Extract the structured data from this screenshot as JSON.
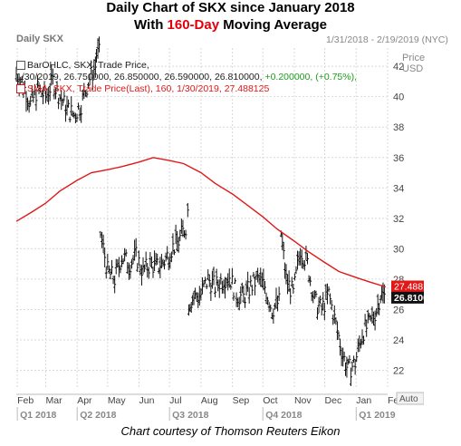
{
  "header": {
    "title_line1": "Daily Chart of SKX since January 2018",
    "title_line2_prefix": "With ",
    "title_line2_highlight": "160-Day",
    "title_line2_suffix": " Moving Average"
  },
  "panel": {
    "name": "Daily SKX",
    "date_range": "1/31/2018 - 2/19/2019 (NYC)",
    "price_label": "Price",
    "currency_label": "USD",
    "auto_button": "Auto"
  },
  "legend": {
    "ohlc_label": "BarOHLC, SKX, Trade Price,",
    "ohlc_values": "1/30/2019, 26.750000, 26.850000, 26.590000, 26.810000,",
    "ohlc_change": "+0.200000, (+0.75%),",
    "sma_label": "SMA, SKX, Trade Price(Last), 160, 1/30/2019, 27.488125"
  },
  "caption": "Chart courtesy of Thomson Reuters Eikon",
  "colors": {
    "price_bars": "#111111",
    "sma_line": "#e01818",
    "sma_tag_bg": "#e01818",
    "last_tag_bg": "#111111",
    "grid": "#d9d9d9",
    "axis_text": "#444444",
    "quarter_text": "#888888",
    "change_positive": "#1a9e1a"
  },
  "chart_data": {
    "type": "ohlc",
    "ticker": "SKX",
    "y_axis": {
      "ylim": [
        20.9,
        43.2
      ],
      "ticks": [
        22,
        24,
        26,
        28,
        30,
        32,
        34,
        36,
        38,
        40,
        42
      ],
      "side": "right"
    },
    "x_axis": {
      "month_labels": [
        "Feb",
        "Mar",
        "Apr",
        "May",
        "Jun",
        "Jul",
        "Aug",
        "Sep",
        "Oct",
        "Nov",
        "Dec",
        "Jan",
        "Feb"
      ],
      "quarter_labels": [
        "Q1 2018",
        "Q2 2018",
        "Q3 2018",
        "Q4 2018",
        "Q1 2019"
      ]
    },
    "grid": true,
    "last_price_tag": "26.810000",
    "sma_tag": "27.488125",
    "close_points": [
      [
        "2018-01-31",
        41.5
      ],
      [
        "2018-02-07",
        40.8
      ],
      [
        "2018-02-14",
        39.5
      ],
      [
        "2018-02-21",
        40.5
      ],
      [
        "2018-03-01",
        40.0
      ],
      [
        "2018-03-08",
        41.0
      ],
      [
        "2018-03-15",
        40.0
      ],
      [
        "2018-03-22",
        39.2
      ],
      [
        "2018-03-29",
        38.8
      ],
      [
        "2018-04-05",
        39.5
      ],
      [
        "2018-04-12",
        41.0
      ],
      [
        "2018-04-19",
        42.0
      ],
      [
        "2018-04-20",
        42.8
      ],
      [
        "2018-04-24",
        31.0
      ],
      [
        "2018-05-01",
        28.5
      ],
      [
        "2018-05-08",
        28.0
      ],
      [
        "2018-05-15",
        29.5
      ],
      [
        "2018-05-22",
        29.0
      ],
      [
        "2018-05-29",
        29.5
      ],
      [
        "2018-06-05",
        28.5
      ],
      [
        "2018-06-12",
        29.0
      ],
      [
        "2018-06-19",
        28.8
      ],
      [
        "2018-06-26",
        29.2
      ],
      [
        "2018-07-03",
        30.0
      ],
      [
        "2018-07-10",
        30.5
      ],
      [
        "2018-07-17",
        31.5
      ],
      [
        "2018-07-19",
        32.5
      ],
      [
        "2018-07-20",
        26.5
      ],
      [
        "2018-07-25",
        26.8
      ],
      [
        "2018-08-01",
        27.0
      ],
      [
        "2018-08-08",
        28.0
      ],
      [
        "2018-08-15",
        27.5
      ],
      [
        "2018-08-22",
        28.0
      ],
      [
        "2018-08-29",
        28.2
      ],
      [
        "2018-09-05",
        27.0
      ],
      [
        "2018-09-12",
        26.8
      ],
      [
        "2018-09-19",
        27.5
      ],
      [
        "2018-09-26",
        28.0
      ],
      [
        "2018-10-03",
        27.5
      ],
      [
        "2018-10-10",
        26.0
      ],
      [
        "2018-10-17",
        26.5
      ],
      [
        "2018-10-19",
        31.0
      ],
      [
        "2018-10-24",
        28.0
      ],
      [
        "2018-10-31",
        27.0
      ],
      [
        "2018-11-07",
        30.0
      ],
      [
        "2018-11-14",
        29.0
      ],
      [
        "2018-11-21",
        26.5
      ],
      [
        "2018-11-28",
        26.0
      ],
      [
        "2018-12-05",
        27.0
      ],
      [
        "2018-12-12",
        25.0
      ],
      [
        "2018-12-19",
        23.0
      ],
      [
        "2018-12-24",
        22.0
      ],
      [
        "2018-12-31",
        22.5
      ],
      [
        "2019-01-07",
        24.5
      ],
      [
        "2019-01-14",
        25.0
      ],
      [
        "2019-01-21",
        26.0
      ],
      [
        "2019-01-25",
        27.0
      ],
      [
        "2019-01-30",
        26.81
      ]
    ],
    "sma_160": [
      [
        "2018-01-31",
        31.8
      ],
      [
        "2018-02-15",
        32.4
      ],
      [
        "2018-03-01",
        33.0
      ],
      [
        "2018-03-15",
        33.8
      ],
      [
        "2018-04-01",
        34.5
      ],
      [
        "2018-04-15",
        35.0
      ],
      [
        "2018-05-01",
        35.2
      ],
      [
        "2018-05-15",
        35.4
      ],
      [
        "2018-06-01",
        35.7
      ],
      [
        "2018-06-15",
        36.0
      ],
      [
        "2018-07-01",
        35.8
      ],
      [
        "2018-07-15",
        35.6
      ],
      [
        "2018-08-01",
        35.0
      ],
      [
        "2018-08-15",
        34.3
      ],
      [
        "2018-09-01",
        33.6
      ],
      [
        "2018-09-15",
        32.9
      ],
      [
        "2018-10-01",
        32.1
      ],
      [
        "2018-10-15",
        31.3
      ],
      [
        "2018-11-01",
        30.5
      ],
      [
        "2018-11-15",
        29.8
      ],
      [
        "2018-12-01",
        29.1
      ],
      [
        "2018-12-15",
        28.5
      ],
      [
        "2019-01-01",
        28.1
      ],
      [
        "2019-01-15",
        27.8
      ],
      [
        "2019-01-30",
        27.49
      ]
    ]
  }
}
